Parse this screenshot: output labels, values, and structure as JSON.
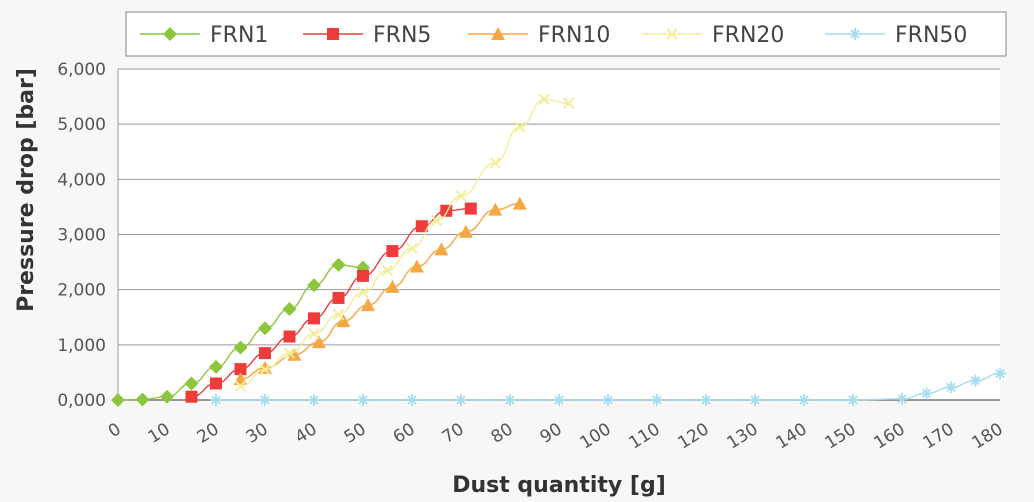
{
  "chart_data": {
    "type": "line",
    "xlabel": "Dust quantity [g]",
    "ylabel": "Pressure drop  [bar]",
    "xlim": [
      0,
      180
    ],
    "ylim": [
      0,
      6000
    ],
    "x_ticks": [
      "0",
      "10",
      "20",
      "30",
      "40",
      "50",
      "60",
      "70",
      "80",
      "90",
      "100",
      "110",
      "120",
      "130",
      "140",
      "150",
      "160",
      "170",
      "180"
    ],
    "y_ticks": [
      "0,000",
      "1,000",
      "2,000",
      "3,000",
      "4,000",
      "5,000",
      "6,000"
    ],
    "grid": "horizontal",
    "legend_position": "top",
    "series": [
      {
        "name": "FRN1",
        "color": "#8cc63f",
        "marker": "diamond",
        "points": [
          [
            0,
            0
          ],
          [
            5,
            10
          ],
          [
            10,
            60
          ],
          [
            15,
            300
          ],
          [
            20,
            600
          ],
          [
            25,
            950
          ],
          [
            30,
            1300
          ],
          [
            35,
            1650
          ],
          [
            40,
            2080
          ],
          [
            45,
            2450
          ],
          [
            50,
            2400
          ]
        ]
      },
      {
        "name": "FRN5",
        "color": "#ee3b3b",
        "marker": "square",
        "points": [
          [
            15,
            60
          ],
          [
            20,
            300
          ],
          [
            25,
            560
          ],
          [
            30,
            850
          ],
          [
            35,
            1150
          ],
          [
            40,
            1480
          ],
          [
            45,
            1850
          ],
          [
            50,
            2250
          ],
          [
            56,
            2700
          ],
          [
            62,
            3150
          ],
          [
            67,
            3430
          ],
          [
            72,
            3470
          ]
        ]
      },
      {
        "name": "FRN10",
        "color": "#f5a742",
        "marker": "triangle",
        "points": [
          [
            25,
            380
          ],
          [
            30,
            580
          ],
          [
            36,
            820
          ],
          [
            41,
            1050
          ],
          [
            46,
            1430
          ],
          [
            51,
            1720
          ],
          [
            56,
            2050
          ],
          [
            61,
            2420
          ],
          [
            66,
            2730
          ],
          [
            71,
            3050
          ],
          [
            77,
            3450
          ],
          [
            82,
            3560
          ]
        ]
      },
      {
        "name": "FRN20",
        "color": "#f2ee9a",
        "marker": "cross",
        "points": [
          [
            25,
            250
          ],
          [
            30,
            550
          ],
          [
            35,
            850
          ],
          [
            40,
            1200
          ],
          [
            45,
            1550
          ],
          [
            50,
            1950
          ],
          [
            55,
            2350
          ],
          [
            60,
            2750
          ],
          [
            65,
            3250
          ],
          [
            70,
            3700
          ],
          [
            77,
            4300
          ],
          [
            82,
            4950
          ],
          [
            87,
            5450
          ],
          [
            92,
            5380
          ]
        ]
      },
      {
        "name": "FRN50",
        "color": "#a6dcf0",
        "marker": "asterisk",
        "points": [
          [
            20,
            0
          ],
          [
            30,
            0
          ],
          [
            40,
            0
          ],
          [
            50,
            0
          ],
          [
            60,
            0
          ],
          [
            70,
            0
          ],
          [
            80,
            0
          ],
          [
            90,
            0
          ],
          [
            100,
            0
          ],
          [
            110,
            0
          ],
          [
            120,
            0
          ],
          [
            130,
            0
          ],
          [
            140,
            0
          ],
          [
            150,
            0
          ],
          [
            160,
            20
          ],
          [
            165,
            120
          ],
          [
            170,
            230
          ],
          [
            175,
            350
          ],
          [
            180,
            480
          ]
        ]
      }
    ]
  }
}
